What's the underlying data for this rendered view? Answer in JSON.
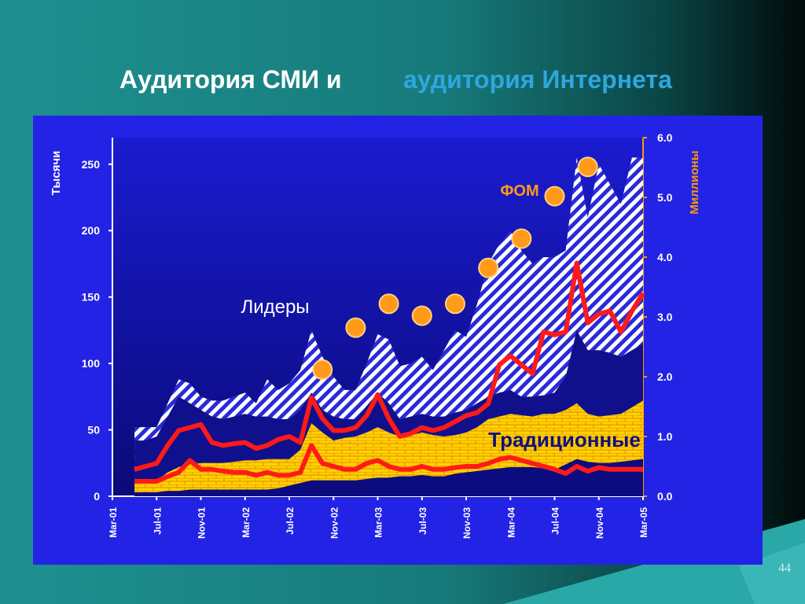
{
  "chart_data": {
    "type": "combo",
    "title": "Аудитория СМИ и",
    "title_highlight": "аудитория Интернета",
    "ylabel": "Тысячи",
    "y2label": "Миллионы",
    "page_number": "44",
    "categories": [
      "Mar-01",
      null,
      null,
      null,
      "Jul-01",
      null,
      null,
      null,
      "Nov-01",
      null,
      null,
      null,
      "Mar-02",
      null,
      null,
      null,
      "Jul-02",
      null,
      null,
      null,
      "Nov-02",
      null,
      null,
      null,
      "Mar-03",
      null,
      null,
      null,
      "Jul-03",
      null,
      null,
      null,
      "Nov-03",
      null,
      null,
      null,
      "Mar-04",
      null,
      null,
      null,
      "Jul-04",
      null,
      null,
      null,
      "Nov-04",
      null,
      null,
      null,
      "Mar-05"
    ],
    "ylim": [
      0,
      270
    ],
    "yticks": [
      0,
      50,
      100,
      150,
      200,
      250
    ],
    "y2lim": [
      0,
      6
    ],
    "y2ticks": [
      {
        "value": 0,
        "label": "0.0"
      },
      {
        "value": 1,
        "label": "1.0"
      },
      {
        "value": 2,
        "label": "2.0"
      },
      {
        "value": 3,
        "label": "3.0"
      },
      {
        "value": 4,
        "label": "4.0"
      },
      {
        "value": 5,
        "label": "5.0"
      },
      {
        "value": 6,
        "label": "6.0"
      }
    ],
    "series": [
      {
        "name": "Лидеры",
        "style": "area",
        "pattern": "hatch",
        "color": "#ffffff",
        "values": [
          null,
          null,
          52,
          52,
          52,
          70,
          88,
          85,
          75,
          72,
          72,
          75,
          78,
          70,
          88,
          80,
          85,
          95,
          125,
          105,
          90,
          80,
          80,
          100,
          122,
          118,
          98,
          100,
          105,
          95,
          110,
          125,
          120,
          145,
          175,
          190,
          200,
          185,
          175,
          180,
          180,
          185,
          255,
          210,
          250,
          235,
          220,
          255,
          255
        ]
      },
      {
        "style": "area",
        "color": "#10108c",
        "values": [
          null,
          null,
          42,
          42,
          45,
          60,
          75,
          70,
          65,
          60,
          58,
          60,
          62,
          60,
          60,
          58,
          58,
          65,
          78,
          65,
          60,
          58,
          58,
          68,
          78,
          70,
          58,
          60,
          62,
          60,
          60,
          63,
          65,
          70,
          75,
          78,
          80,
          75,
          75,
          76,
          78,
          90,
          125,
          110,
          110,
          108,
          105,
          110,
          115
        ]
      },
      {
        "name": "Традиционные",
        "style": "area",
        "pattern": "brick",
        "color": "#ffd200",
        "values": [
          null,
          null,
          10,
          10,
          12,
          18,
          22,
          24,
          25,
          25,
          25,
          26,
          27,
          27,
          28,
          28,
          28,
          35,
          55,
          48,
          42,
          44,
          45,
          48,
          52,
          48,
          45,
          46,
          48,
          46,
          45,
          46,
          48,
          52,
          58,
          60,
          62,
          61,
          60,
          62,
          62,
          65,
          70,
          62,
          60,
          61,
          62,
          67,
          72
        ]
      },
      {
        "style": "area",
        "color": "#0c0c80",
        "values": [
          null,
          null,
          3,
          3,
          3,
          4,
          4,
          5,
          5,
          5,
          5,
          5,
          5,
          5,
          5,
          6,
          8,
          10,
          12,
          12,
          12,
          12,
          12,
          13,
          14,
          14,
          15,
          15,
          16,
          15,
          15,
          17,
          18,
          19,
          20,
          21,
          22,
          22,
          22,
          21,
          20,
          24,
          28,
          26,
          25,
          25,
          26,
          27,
          28
        ]
      },
      {
        "style": "line",
        "axis": "y2",
        "color": "#ff1a1a",
        "values": [
          null,
          null,
          0.45,
          0.5,
          0.55,
          0.85,
          1.1,
          1.15,
          1.2,
          0.9,
          0.85,
          0.88,
          0.9,
          0.8,
          0.85,
          0.95,
          1.0,
          0.9,
          1.65,
          1.3,
          1.1,
          1.1,
          1.15,
          1.35,
          1.7,
          1.3,
          1.0,
          1.05,
          1.15,
          1.1,
          1.15,
          1.25,
          1.35,
          1.4,
          1.55,
          2.2,
          2.35,
          2.2,
          2.05,
          2.75,
          2.7,
          2.75,
          3.9,
          2.9,
          3.05,
          3.1,
          2.75,
          3.1,
          3.4
        ]
      },
      {
        "style": "line",
        "axis": "y2",
        "color": "#ff1a1a",
        "values": [
          null,
          null,
          0.25,
          0.25,
          0.25,
          0.33,
          0.4,
          0.6,
          0.45,
          0.45,
          0.42,
          0.4,
          0.4,
          0.35,
          0.4,
          0.35,
          0.35,
          0.4,
          0.85,
          0.55,
          0.5,
          0.45,
          0.45,
          0.55,
          0.6,
          0.5,
          0.45,
          0.45,
          0.5,
          0.45,
          0.45,
          0.48,
          0.5,
          0.5,
          0.55,
          0.62,
          0.65,
          0.6,
          0.55,
          0.5,
          0.45,
          0.38,
          0.5,
          0.42,
          0.48,
          0.45,
          0.45,
          0.45,
          0.45
        ]
      },
      {
        "name": "ФОМ",
        "style": "dots",
        "axis": "y2",
        "color": "#ff9a1a",
        "values": [
          null,
          null,
          null,
          null,
          null,
          null,
          null,
          null,
          null,
          null,
          null,
          null,
          null,
          null,
          null,
          null,
          null,
          null,
          null,
          2.12,
          null,
          null,
          2.82,
          null,
          null,
          3.22,
          null,
          null,
          3.02,
          null,
          null,
          3.22,
          null,
          null,
          3.82,
          null,
          null,
          4.31,
          null,
          null,
          5.02,
          null,
          null,
          5.51,
          null,
          null,
          null,
          null,
          null
        ]
      }
    ]
  }
}
